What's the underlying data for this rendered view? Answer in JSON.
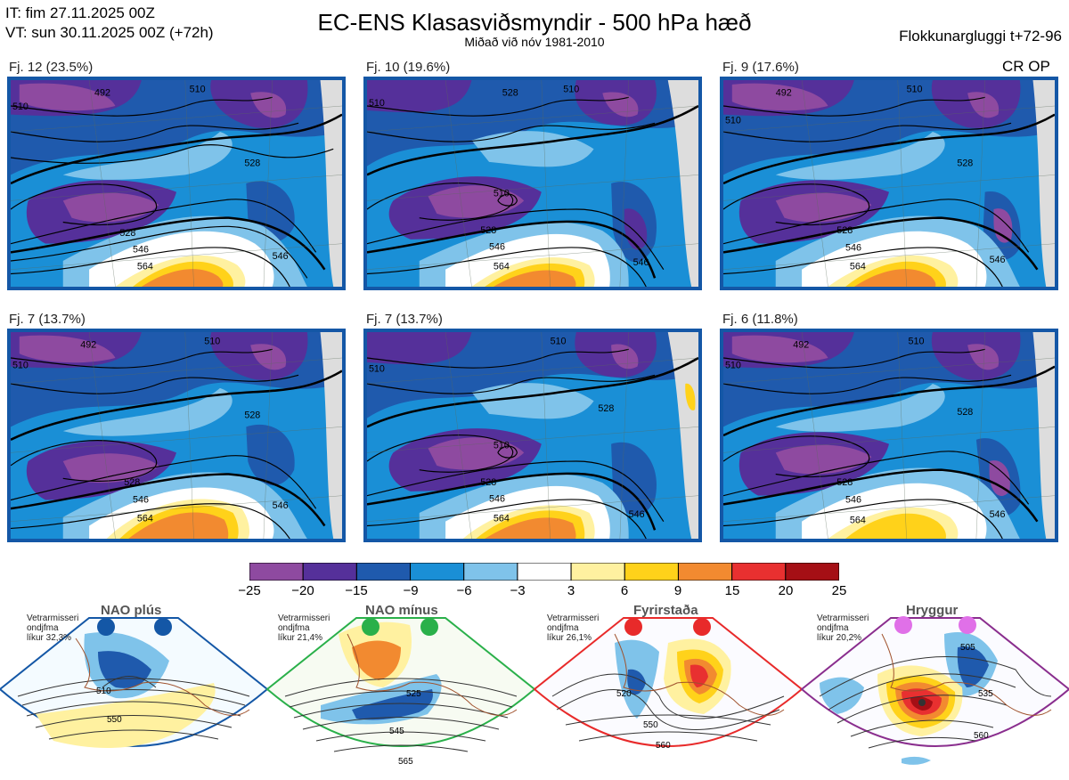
{
  "header": {
    "it_line": "IT: fim 27.11.2025 00Z",
    "vt_line": "VT: sun 30.11.2025 00Z  (+72h)",
    "title": "EC-ENS Klasasviðsmyndir - 500 hPa hæð",
    "subtitle": "Miðað við nóv 1981-2010",
    "window": "Flokkunargluggi t+72-96",
    "cr_op": "CR OP"
  },
  "panels": [
    {
      "label": "Fj. 12 (23.5%)",
      "contours": [
        "492",
        "510",
        "510",
        "528",
        "528",
        "546",
        "564",
        "546"
      ]
    },
    {
      "label": "Fj. 10 (19.6%)",
      "contours": [
        "510",
        "510",
        "528",
        "510",
        "528",
        "546",
        "564",
        "546"
      ]
    },
    {
      "label": "Fj. 9 (17.6%)",
      "contours": [
        "492",
        "510",
        "510",
        "528",
        "528",
        "546",
        "564",
        "546"
      ]
    },
    {
      "label": "Fj. 7 (13.7%)",
      "contours": [
        "492",
        "510",
        "510",
        "528",
        "528",
        "546",
        "564",
        "546"
      ]
    },
    {
      "label": "Fj. 7 (13.7%)",
      "contours": [
        "510",
        "510",
        "528",
        "510",
        "528",
        "546",
        "564",
        "546"
      ]
    },
    {
      "label": "Fj. 6 (11.8%)",
      "contours": [
        "492",
        "510",
        "510",
        "528",
        "528",
        "546",
        "564",
        "546"
      ]
    }
  ],
  "colorbar": {
    "ticks": [
      "−25",
      "−20",
      "−15",
      "−9",
      "−6",
      "−3",
      "3",
      "6",
      "9",
      "15",
      "20",
      "25"
    ],
    "colors": [
      "#8e4aa0",
      "#55309a",
      "#1f5aad",
      "#1a8fd6",
      "#7fc3ea",
      "#ffffff",
      "#fff1a0",
      "#ffd21a",
      "#f28a30",
      "#e83030",
      "#a50f15"
    ]
  },
  "regimes": [
    {
      "title": "NAO plús",
      "note": [
        "Vetrarmisseri",
        "ondjfma",
        "líkur 32,3%"
      ],
      "dot_color": "#1457a6",
      "frame_color": "#1457a6",
      "contours": [
        "510",
        "550"
      ]
    },
    {
      "title": "NAO mínus",
      "note": [
        "Vetrarmisseri",
        "ondjfma",
        "líkur 21,4%"
      ],
      "dot_color": "#2ab04a",
      "frame_color": "#2ab04a",
      "contours": [
        "525",
        "545",
        "565"
      ]
    },
    {
      "title": "Fyrirstaða",
      "note": [
        "Vetrarmisseri",
        "ondjfma",
        "líkur 26,1%"
      ],
      "dot_color": "#e82a2a",
      "frame_color": "#e82a2a",
      "contours": [
        "520",
        "550",
        "560"
      ]
    },
    {
      "title": "Hryggur",
      "note": [
        "Vetrarmisseri",
        "ondjfma",
        "líkur 20,2%"
      ],
      "dot_color": "#e070e8",
      "frame_color": "#8a2e8e",
      "contours": [
        "505",
        "535",
        "560"
      ]
    }
  ]
}
